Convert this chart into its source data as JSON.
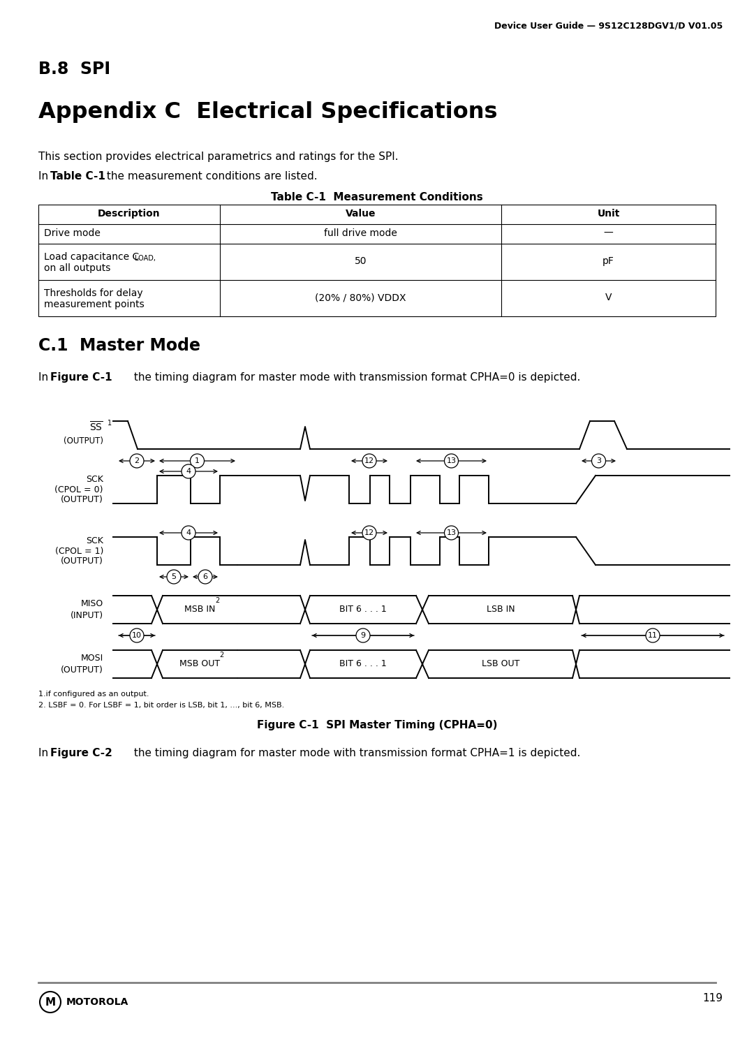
{
  "page_header": "Device User Guide — 9S12C128DGV1/D V01.05",
  "section_b8": "B.8  SPI",
  "appendix_title": "Appendix C  Electrical Specifications",
  "para1": "This section provides electrical parametrics and ratings for the SPI.",
  "para2_bold": "Table C-1",
  "para2_rest": " the measurement conditions are listed.",
  "table_title": "Table C-1  Measurement Conditions",
  "section_c1": "C.1  Master Mode",
  "para3_bold": "Figure C-1",
  "para3_rest": " the timing diagram for master mode with transmission format CPHA=0 is depicted.",
  "fig_caption": "Figure C-1  SPI Master Timing (CPHA=0)",
  "para4_bold": "Figure C-2",
  "para4_rest": " the timing diagram for master mode with transmission format CPHA=1 is depicted.",
  "footnote1": "1.if configured as an output.",
  "footnote2": "2. LSBF = 0. For LSBF = 1, bit order is LSB, bit 1, ..., bit 6, MSB.",
  "page_number": "119",
  "bg_color": "#ffffff"
}
